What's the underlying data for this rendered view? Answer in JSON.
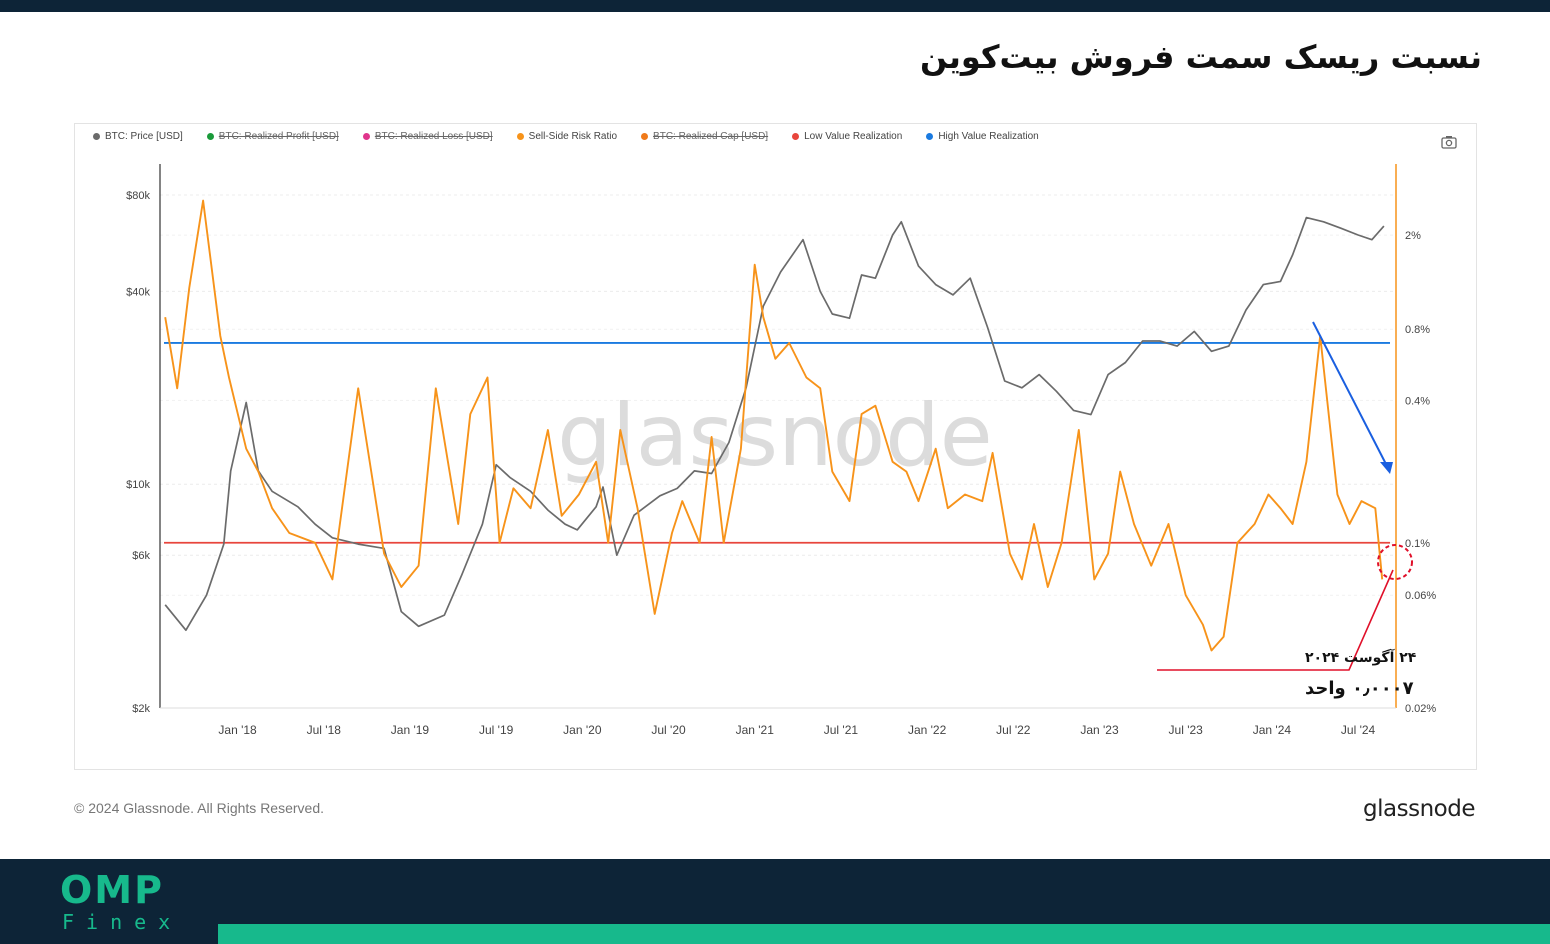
{
  "header": {
    "title": "نسبت ریسک سمت فروش بیت‌کوین"
  },
  "legend": [
    {
      "label": "BTC: Price [USD]",
      "color": "#6b6b6b",
      "active": true
    },
    {
      "label": "BTC: Realized Profit [USD]",
      "color": "#1a9a3a",
      "active": false
    },
    {
      "label": "BTC: Realized Loss [USD]",
      "color": "#e0358c",
      "active": false
    },
    {
      "label": "Sell-Side Risk Ratio",
      "color": "#f7931a",
      "active": true
    },
    {
      "label": "BTC: Realized Cap [USD]",
      "color": "#f07a1a",
      "active": false
    },
    {
      "label": "Low Value Realization",
      "color": "#e8453c",
      "active": true
    },
    {
      "label": "High Value Realization",
      "color": "#1a7ae0",
      "active": true
    }
  ],
  "chart_data": {
    "type": "line",
    "x_ticks": [
      "Jan '18",
      "Jul '18",
      "Jan '19",
      "Jul '19",
      "Jan '20",
      "Jul '20",
      "Jan '21",
      "Jul '21",
      "Jan '22",
      "Jul '22",
      "Jan '23",
      "Jul '23",
      "Jan '24",
      "Jul '24"
    ],
    "y_left": {
      "scale": "log",
      "ticks": [
        "$80k",
        "$40k",
        "$10k",
        "$6k",
        "$2k"
      ],
      "tick_values": [
        80000,
        40000,
        10000,
        6000,
        2000
      ],
      "range": [
        2000,
        100000
      ]
    },
    "y_right": {
      "scale": "log",
      "ticks": [
        "2%",
        "0.8%",
        "0.4%",
        "0.1%",
        "0.06%",
        "0.02%"
      ],
      "tick_values": [
        2,
        0.8,
        0.4,
        0.1,
        0.06,
        0.02
      ],
      "range": [
        0.02,
        4
      ]
    },
    "series": [
      {
        "name": "BTC: Price [USD]",
        "color": "#6b6b6b",
        "axis": "left",
        "x": [
          2017.58,
          2017.7,
          2017.82,
          2017.92,
          2017.96,
          2018.05,
          2018.12,
          2018.2,
          2018.35,
          2018.45,
          2018.55,
          2018.7,
          2018.85,
          2018.95,
          2019.05,
          2019.2,
          2019.3,
          2019.42,
          2019.5,
          2019.58,
          2019.7,
          2019.8,
          2019.9,
          2019.97,
          2020.08,
          2020.12,
          2020.2,
          2020.3,
          2020.45,
          2020.55,
          2020.65,
          2020.75,
          2020.85,
          2020.95,
          2021.05,
          2021.15,
          2021.28,
          2021.38,
          2021.45,
          2021.55,
          2021.62,
          2021.7,
          2021.8,
          2021.85,
          2021.95,
          2022.05,
          2022.15,
          2022.25,
          2022.35,
          2022.45,
          2022.55,
          2022.65,
          2022.75,
          2022.85,
          2022.95,
          2023.05,
          2023.15,
          2023.25,
          2023.35,
          2023.45,
          2023.55,
          2023.65,
          2023.75,
          2023.85,
          2023.95,
          2024.05,
          2024.12,
          2024.2,
          2024.3,
          2024.4,
          2024.5,
          2024.58,
          2024.65
        ],
        "values": [
          4200,
          3500,
          4500,
          6500,
          11000,
          18000,
          11000,
          9500,
          8500,
          7500,
          6800,
          6500,
          6300,
          4000,
          3600,
          3900,
          5200,
          7500,
          11500,
          10500,
          9500,
          8300,
          7500,
          7200,
          8500,
          9800,
          6000,
          8000,
          9200,
          9700,
          11000,
          10800,
          13500,
          20000,
          36000,
          46000,
          58000,
          40000,
          34000,
          33000,
          45000,
          44000,
          60000,
          66000,
          48000,
          42000,
          39000,
          44000,
          31000,
          21000,
          20000,
          22000,
          19500,
          17000,
          16500,
          22000,
          24000,
          28000,
          28000,
          27000,
          30000,
          26000,
          27000,
          35000,
          42000,
          43000,
          52000,
          68000,
          66000,
          63000,
          60000,
          58000,
          64000
        ]
      },
      {
        "name": "Sell-Side Risk Ratio",
        "color": "#f7931a",
        "axis": "right",
        "x": [
          2017.58,
          2017.65,
          2017.72,
          2017.8,
          2017.9,
          2017.95,
          2018.05,
          2018.12,
          2018.2,
          2018.3,
          2018.45,
          2018.55,
          2018.7,
          2018.85,
          2018.95,
          2019.05,
          2019.15,
          2019.28,
          2019.35,
          2019.45,
          2019.52,
          2019.6,
          2019.7,
          2019.8,
          2019.88,
          2019.98,
          2020.08,
          2020.15,
          2020.22,
          2020.32,
          2020.42,
          2020.52,
          2020.58,
          2020.68,
          2020.75,
          2020.82,
          2020.92,
          2021.0,
          2021.05,
          2021.12,
          2021.2,
          2021.3,
          2021.38,
          2021.45,
          2021.55,
          2021.62,
          2021.7,
          2021.8,
          2021.88,
          2021.95,
          2022.05,
          2022.12,
          2022.22,
          2022.32,
          2022.38,
          2022.48,
          2022.55,
          2022.62,
          2022.7,
          2022.78,
          2022.88,
          2022.97,
          2023.05,
          2023.12,
          2023.2,
          2023.3,
          2023.4,
          2023.5,
          2023.6,
          2023.65,
          2023.72,
          2023.8,
          2023.9,
          2023.98,
          2024.05,
          2024.12,
          2024.2,
          2024.28,
          2024.38,
          2024.45,
          2024.52,
          2024.6,
          2024.64
        ],
        "values": [
          0.9,
          0.45,
          1.2,
          2.8,
          0.75,
          0.5,
          0.25,
          0.2,
          0.14,
          0.11,
          0.1,
          0.07,
          0.45,
          0.09,
          0.065,
          0.08,
          0.45,
          0.12,
          0.35,
          0.5,
          0.1,
          0.17,
          0.14,
          0.3,
          0.13,
          0.16,
          0.22,
          0.1,
          0.3,
          0.14,
          0.05,
          0.11,
          0.15,
          0.1,
          0.28,
          0.1,
          0.25,
          1.5,
          0.9,
          0.6,
          0.7,
          0.5,
          0.45,
          0.2,
          0.15,
          0.35,
          0.38,
          0.22,
          0.2,
          0.15,
          0.25,
          0.14,
          0.16,
          0.15,
          0.24,
          0.09,
          0.07,
          0.12,
          0.065,
          0.1,
          0.3,
          0.07,
          0.09,
          0.2,
          0.12,
          0.08,
          0.12,
          0.06,
          0.045,
          0.035,
          0.04,
          0.1,
          0.12,
          0.16,
          0.14,
          0.12,
          0.22,
          0.75,
          0.16,
          0.12,
          0.15,
          0.14,
          0.07
        ]
      },
      {
        "name": "High Value Realization",
        "color": "#1a7ae0",
        "axis": "right",
        "type": "hline",
        "value": 0.7
      },
      {
        "name": "Low Value Realization",
        "color": "#e8453c",
        "axis": "right",
        "type": "hline",
        "value": 0.1
      }
    ],
    "annotations": [
      {
        "text": "۲۴ آگوست ۲۰۲۴",
        "kind": "date"
      },
      {
        "text": "۰٫۰۰۰۷ واحد",
        "kind": "value"
      }
    ],
    "watermark": "glassnode",
    "grid": true
  },
  "footer": {
    "copyright": "© 2024 Glassnode. All Rights Reserved.",
    "brand": "glassnode",
    "logo_main": "OMP",
    "logo_sub": "Finex"
  }
}
